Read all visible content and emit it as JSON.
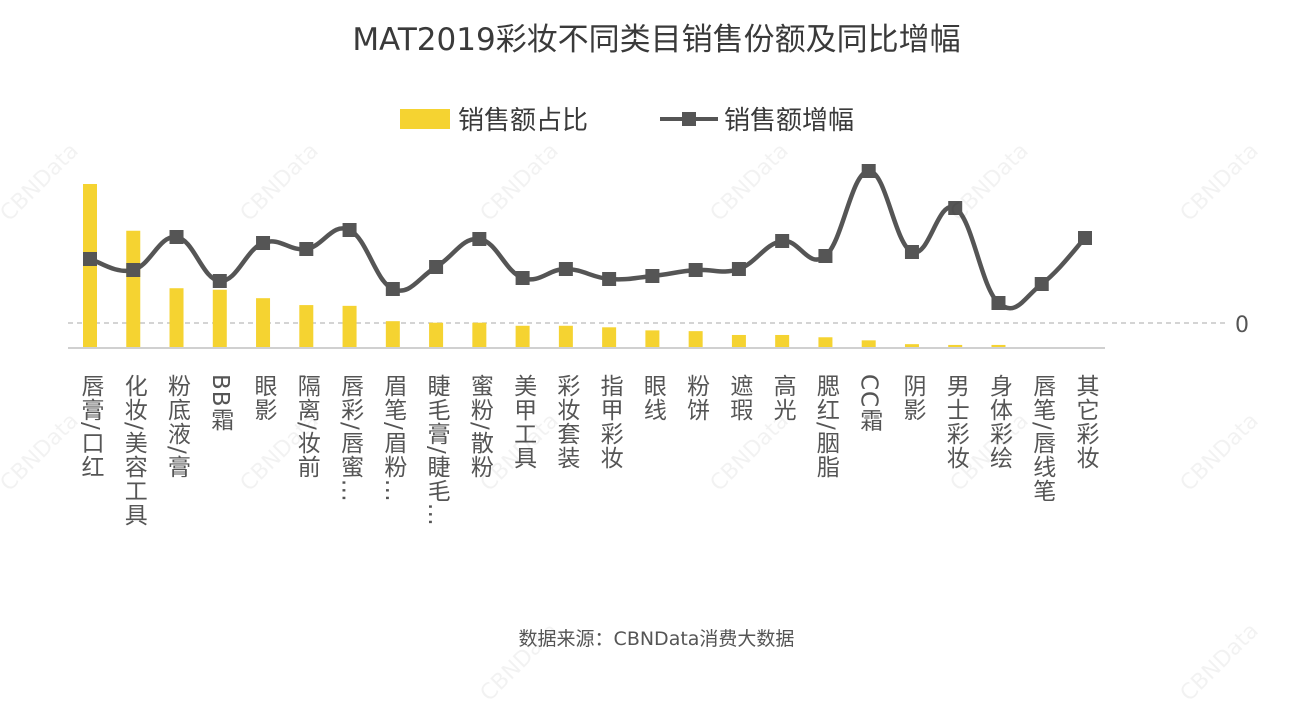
{
  "chart_data": {
    "type": "bar+line",
    "title": "MAT2019彩妆不同类目销售份额及同比增幅",
    "categories": [
      "唇膏/口红",
      "化妆/美容工具",
      "粉底液/膏",
      "BB霜",
      "眼影",
      "隔离/妆前",
      "唇彩/唇蜜…",
      "眉笔/眉粉…",
      "睫毛膏/睫毛…",
      "蜜粉/散粉",
      "美甲工具",
      "彩妆套装",
      "指甲彩妆",
      "眼线",
      "粉饼",
      "遮瑕",
      "高光",
      "腮红/胭脂",
      "CC霜",
      "阴影",
      "男士彩妆",
      "身体彩绘",
      "唇笔/唇线笔",
      "其它彩妆"
    ],
    "series": [
      {
        "name": "销售额占比",
        "type": "bar",
        "color": "#f5d331",
        "values": [
          21.4,
          15.3,
          7.8,
          7.6,
          6.5,
          5.6,
          5.5,
          3.5,
          3.3,
          3.3,
          2.9,
          2.9,
          2.7,
          2.3,
          2.2,
          1.7,
          1.7,
          1.4,
          1.0,
          0.5,
          0.4,
          0.4,
          0.0,
          0.0
        ]
      },
      {
        "name": "销售额增幅",
        "type": "line",
        "color": "#555555",
        "marker": "square",
        "values": [
          64,
          53,
          86,
          42,
          80,
          74,
          93,
          34,
          56,
          84,
          45,
          54,
          44,
          47,
          53,
          54,
          82,
          67,
          152,
          71,
          115,
          20,
          39,
          85
        ]
      }
    ],
    "y_right_tick_labels": [
      "0"
    ],
    "legend": "top-center",
    "grid": false,
    "note": "数值为估计值（无刻度）"
  },
  "legend": {
    "bar_label": "销售额占比",
    "line_label": "销售额增幅"
  },
  "source": "数据来源：CBNData消费大数据",
  "watermark": "CBNData"
}
